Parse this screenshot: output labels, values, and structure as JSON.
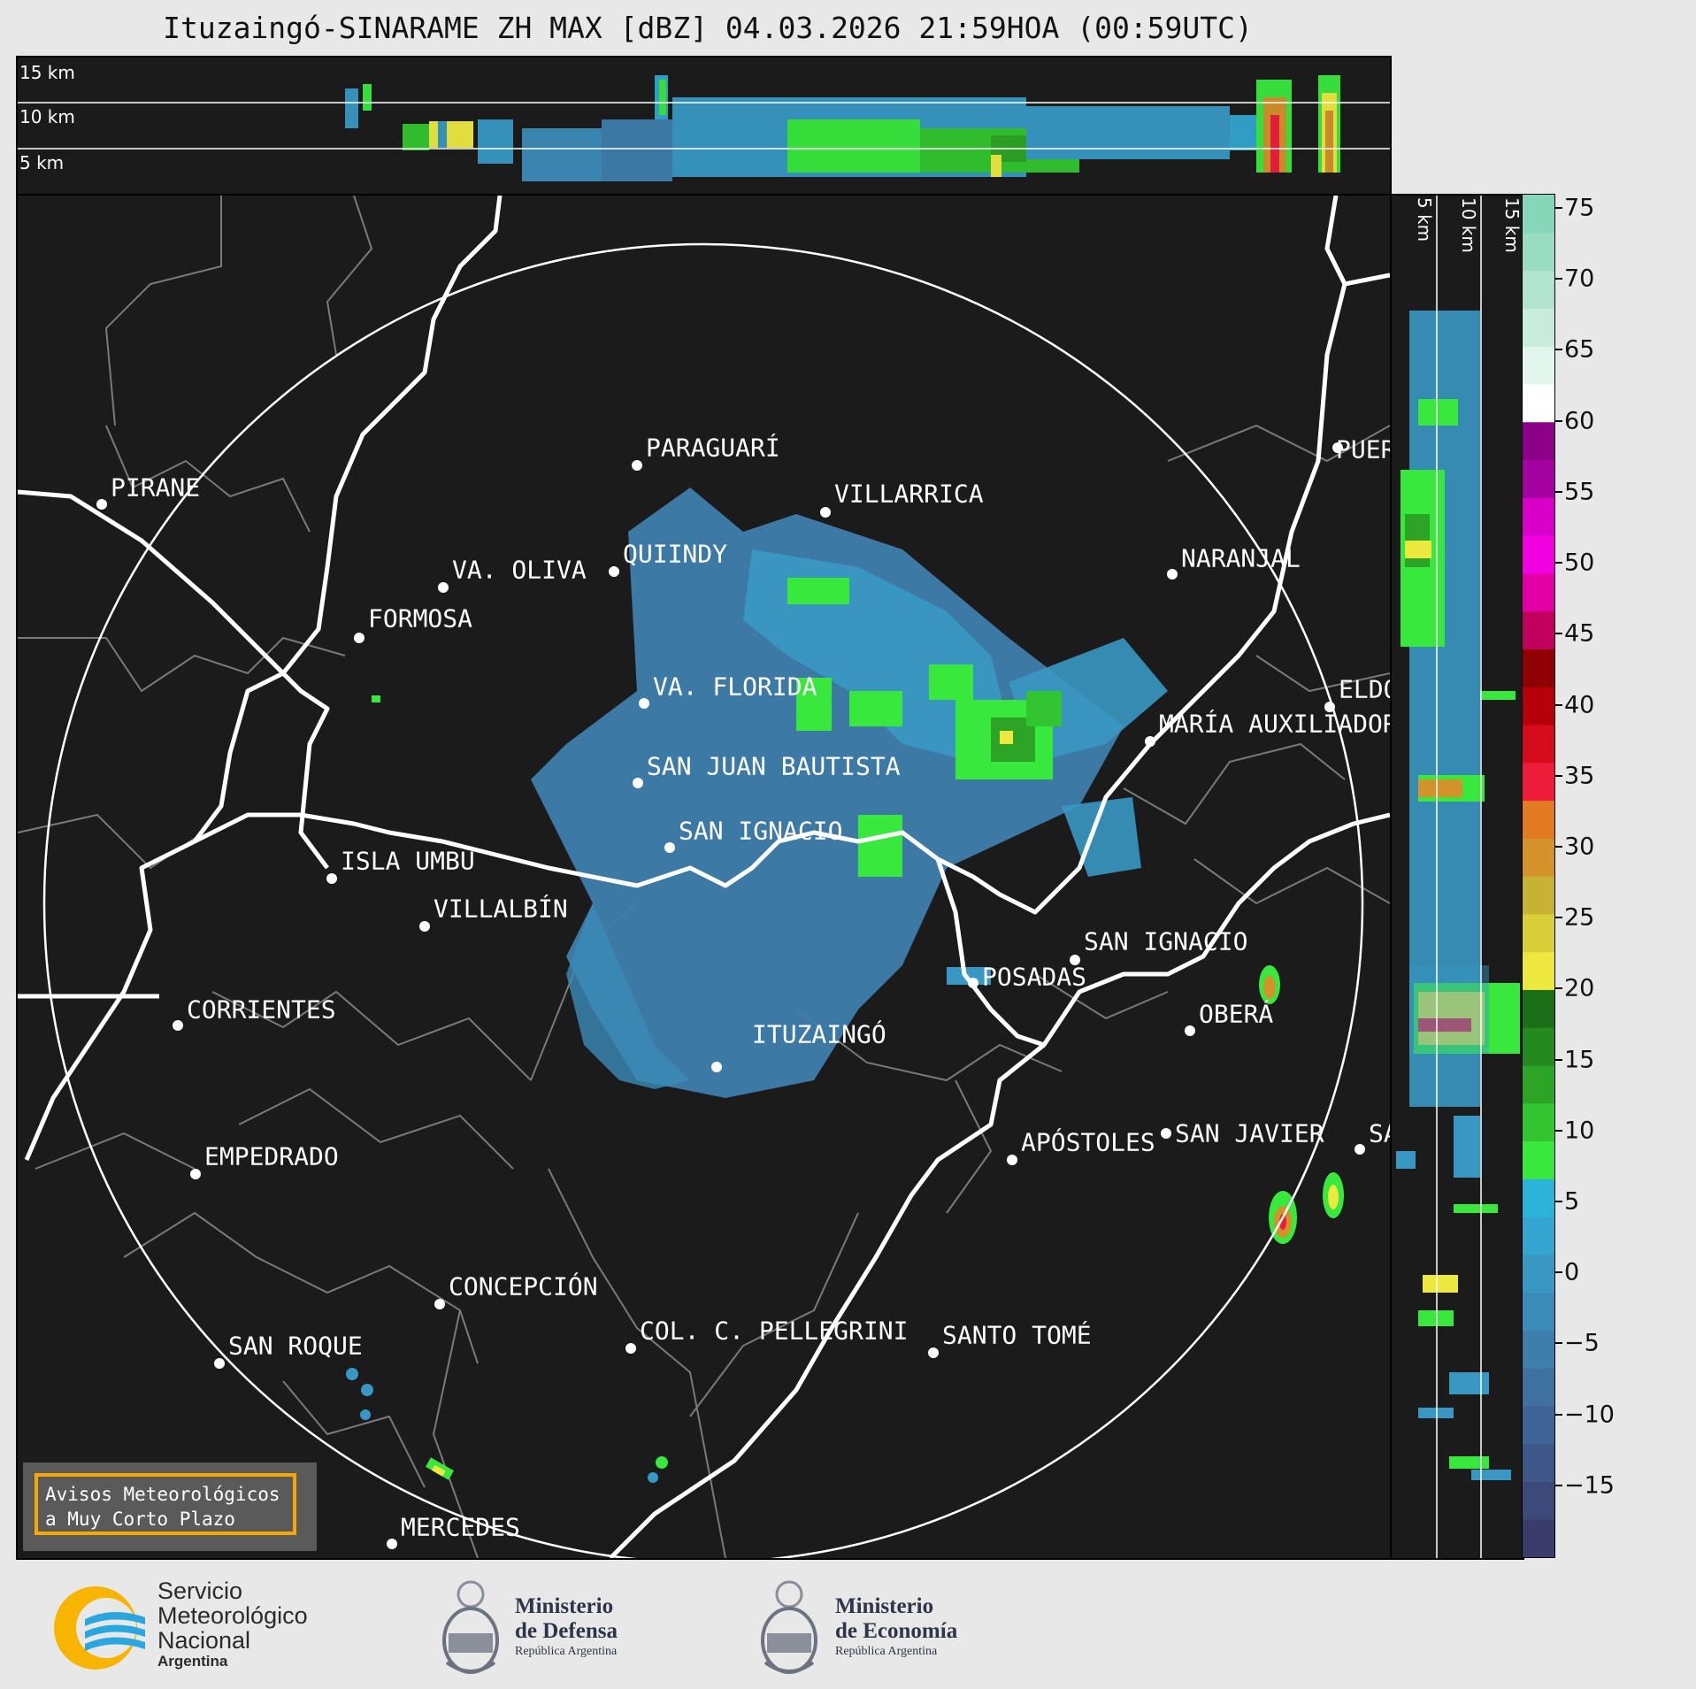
{
  "title": "Ituzaingó-SINARAME ZH MAX [dBZ] 04.03.2026 21:59HOA (00:59UTC)",
  "top_panel": {
    "altitudes": [
      "15 km",
      "10 km",
      "5 km"
    ]
  },
  "side_panel": {
    "altitudes": [
      "5 km",
      "10 km",
      "15 km"
    ]
  },
  "cities": [
    {
      "name": "PIRANE"
    },
    {
      "name": "PARAGUARÍ"
    },
    {
      "name": "VILLARRICA"
    },
    {
      "name": "QUIINDY"
    },
    {
      "name": "VA. OLIVA"
    },
    {
      "name": "NARANJAL"
    },
    {
      "name": "FORMOSA"
    },
    {
      "name": "VA. FLORIDA"
    },
    {
      "name": "ELDOR"
    },
    {
      "name": "MARÍA AUXILIADOR"
    },
    {
      "name": "SAN JUAN BAUTISTA"
    },
    {
      "name": "SAN IGNACIO"
    },
    {
      "name": "ISLA UMBÚ"
    },
    {
      "name": "VILLALBÍN"
    },
    {
      "name": "SAN IGNACIO"
    },
    {
      "name": "POSADAS"
    },
    {
      "name": "CORRIENTES"
    },
    {
      "name": "OBERÁ"
    },
    {
      "name": "ITUZAINGÓ"
    },
    {
      "name": "APÓSTOLES"
    },
    {
      "name": "SAN JAVIER"
    },
    {
      "name": "SAN"
    },
    {
      "name": "EMPEDRADO"
    },
    {
      "name": "CONCEPCIÓN"
    },
    {
      "name": "COL. C. PELLEGRINI"
    },
    {
      "name": "SANTO TOMÉ"
    },
    {
      "name": "SAN ROQUE"
    },
    {
      "name": "MERCEDES"
    },
    {
      "name": "PUER"
    }
  ],
  "colorbar": {
    "unit": "dBZ",
    "min": -20,
    "max": 76,
    "ticks": [
      75,
      70,
      65,
      60,
      55,
      50,
      45,
      40,
      35,
      30,
      25,
      20,
      15,
      10,
      5,
      0,
      -5,
      -10,
      -15
    ],
    "tick_labels": [
      "75",
      "70",
      "65",
      "60",
      "55",
      "50",
      "45",
      "40",
      "35",
      "30",
      "25",
      "20",
      "15",
      "10",
      "5",
      "0",
      "−5",
      "−10",
      "−15"
    ],
    "colors": [
      "#3a3d6b",
      "#3c4a7a",
      "#3d5788",
      "#3f6495",
      "#3f71a0",
      "#3e7eac",
      "#3b8bb8",
      "#3898c3",
      "#33a5ce",
      "#2bb3da",
      "#39e83c",
      "#33c52f",
      "#2ca426",
      "#248a1f",
      "#1c6d18",
      "#ece83e",
      "#d7cf37",
      "#c8b233",
      "#d3922a",
      "#e07b22",
      "#ee1d3a",
      "#d40c1b",
      "#b60009",
      "#8e0003",
      "#c0005c",
      "#e200a6",
      "#f100e0",
      "#d800c8",
      "#a500a0",
      "#8a0088",
      "#ffffff",
      "#e2f5ec",
      "#c8ecdc",
      "#b0e4cf",
      "#98dcc2",
      "#86d7b9"
    ]
  },
  "aviso": {
    "line1": "Avisos Meteorológicos",
    "line2": "a Muy Corto Plazo"
  },
  "logos": {
    "smn": {
      "line1": "Servicio",
      "line2": "Meteorológico",
      "line3": "Nacional",
      "line4": "Argentina"
    },
    "defensa": {
      "line1": "Ministerio",
      "line2": "de Defensa",
      "line3": "República Argentina"
    },
    "economia": {
      "line1": "Ministerio",
      "line2": "de Economía",
      "line3": "República Argentina"
    }
  }
}
